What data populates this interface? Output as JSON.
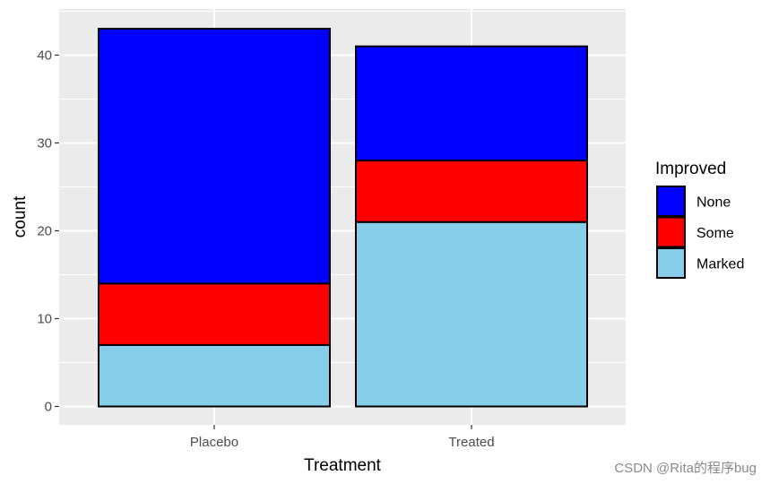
{
  "chart_data": {
    "type": "bar",
    "stacked": true,
    "categories": [
      "Placebo",
      "Treated"
    ],
    "series": [
      {
        "name": "Marked",
        "values": [
          7,
          21
        ],
        "color": "#87CEEB"
      },
      {
        "name": "Some",
        "values": [
          7,
          7
        ],
        "color": "#FF0000"
      },
      {
        "name": "None",
        "values": [
          29,
          13
        ],
        "color": "#0000FF"
      }
    ],
    "xlabel": "Treatment",
    "ylabel": "count",
    "ylim": [
      0,
      45
    ],
    "yticks": [
      0,
      10,
      20,
      30,
      40
    ],
    "grid": true,
    "panel_background": "#EBEBEB",
    "legend": {
      "title": "Improved",
      "placement": "right",
      "entries": [
        {
          "label": "None",
          "color": "#0000FF"
        },
        {
          "label": "Some",
          "color": "#FF0000"
        },
        {
          "label": "Marked",
          "color": "#87CEEB"
        }
      ]
    }
  },
  "watermark": "CSDN @Rita的程序bug"
}
